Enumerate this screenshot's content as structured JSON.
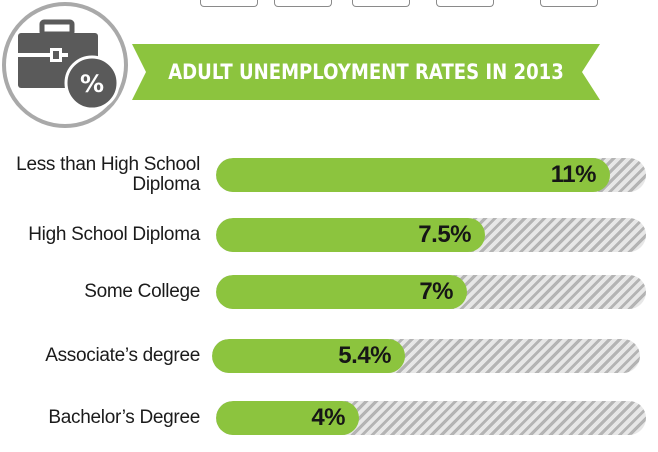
{
  "colors": {
    "fill": "#8cc43e",
    "track": "#e2e2e2",
    "stripe": "#b4b4b4",
    "badge_ring": "#a9a9a9",
    "icon": "#5a5a5a"
  },
  "badge": {
    "icon": "briefcase-percent-icon",
    "symbol": "%"
  },
  "chart_data": {
    "type": "bar",
    "orientation": "horizontal",
    "title": "ADULT UNEMPLOYMENT RATES IN 2013",
    "categories": [
      "Less than High School Diploma",
      "High School Diploma",
      "Some College",
      "Associate’s degree",
      "Bachelor’s Degree"
    ],
    "values": [
      11,
      7.5,
      7,
      5.4,
      4
    ],
    "value_labels": [
      "11%",
      "7.5%",
      "7%",
      "5.4%",
      "4%"
    ],
    "xlim": [
      0,
      12
    ],
    "grid": false,
    "legend": "none"
  }
}
